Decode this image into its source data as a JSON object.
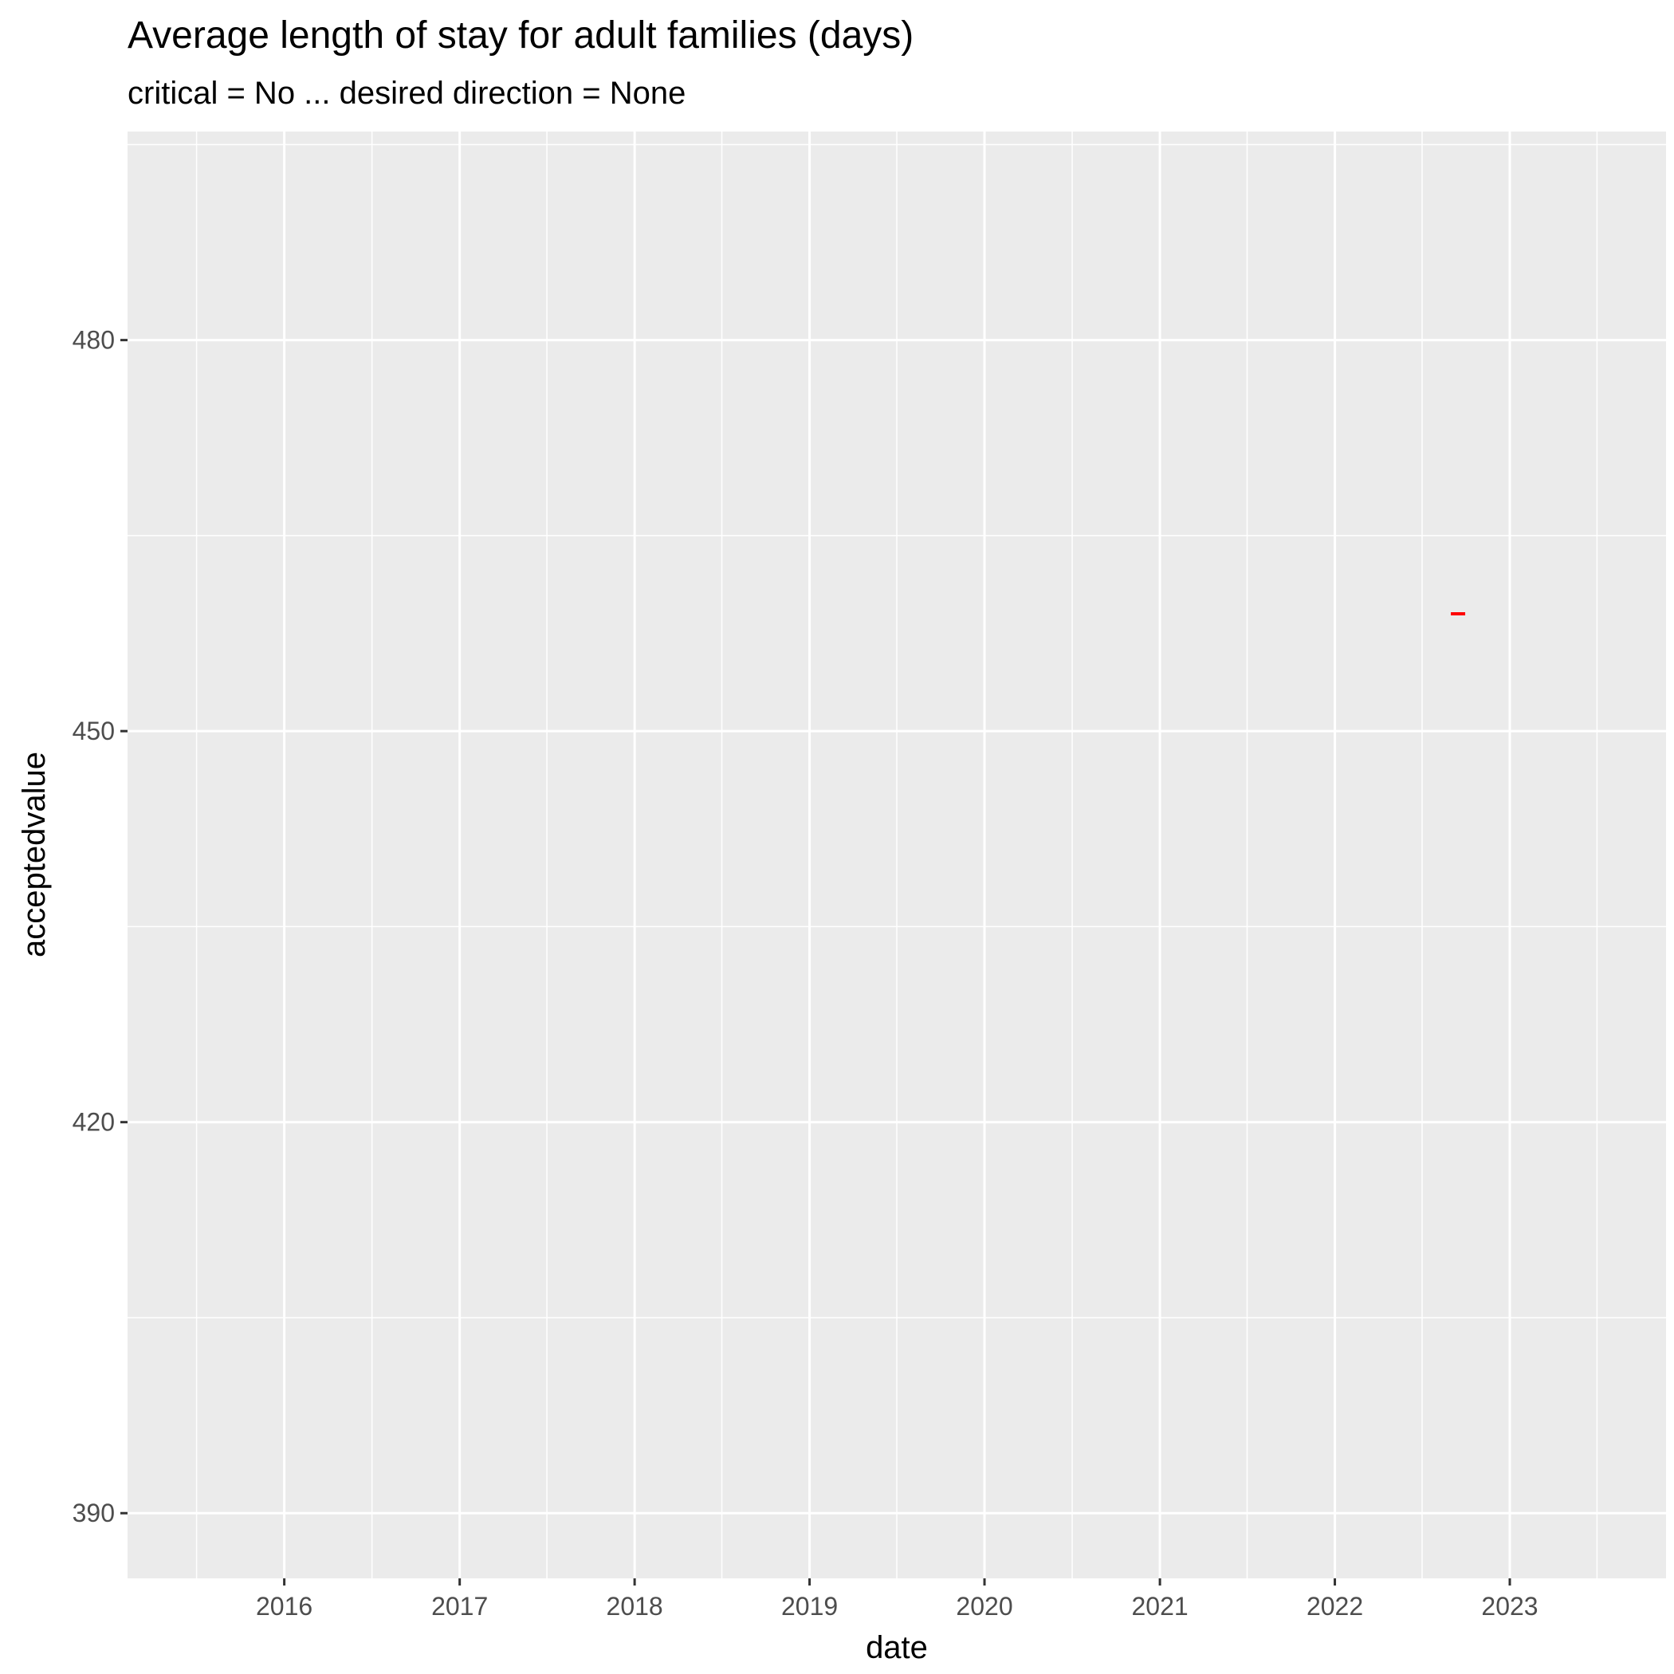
{
  "chart_data": {
    "type": "line",
    "title": "Average length of stay for adult families (days)",
    "subtitle": "critical = No ... desired direction = None",
    "xlabel": "date",
    "ylabel": "acceptedvalue",
    "x_ticks": [
      "2016",
      "2017",
      "2018",
      "2019",
      "2020",
      "2021",
      "2022",
      "2023"
    ],
    "y_ticks": [
      390,
      420,
      450,
      480
    ],
    "xlim": [
      "2015-02-08",
      "2023-11-23"
    ],
    "ylim": [
      385,
      496
    ],
    "grid": true,
    "series": [
      {
        "color": "#ff0000",
        "points": [
          {
            "x": "2022-09-15",
            "y": 459
          }
        ]
      }
    ]
  }
}
